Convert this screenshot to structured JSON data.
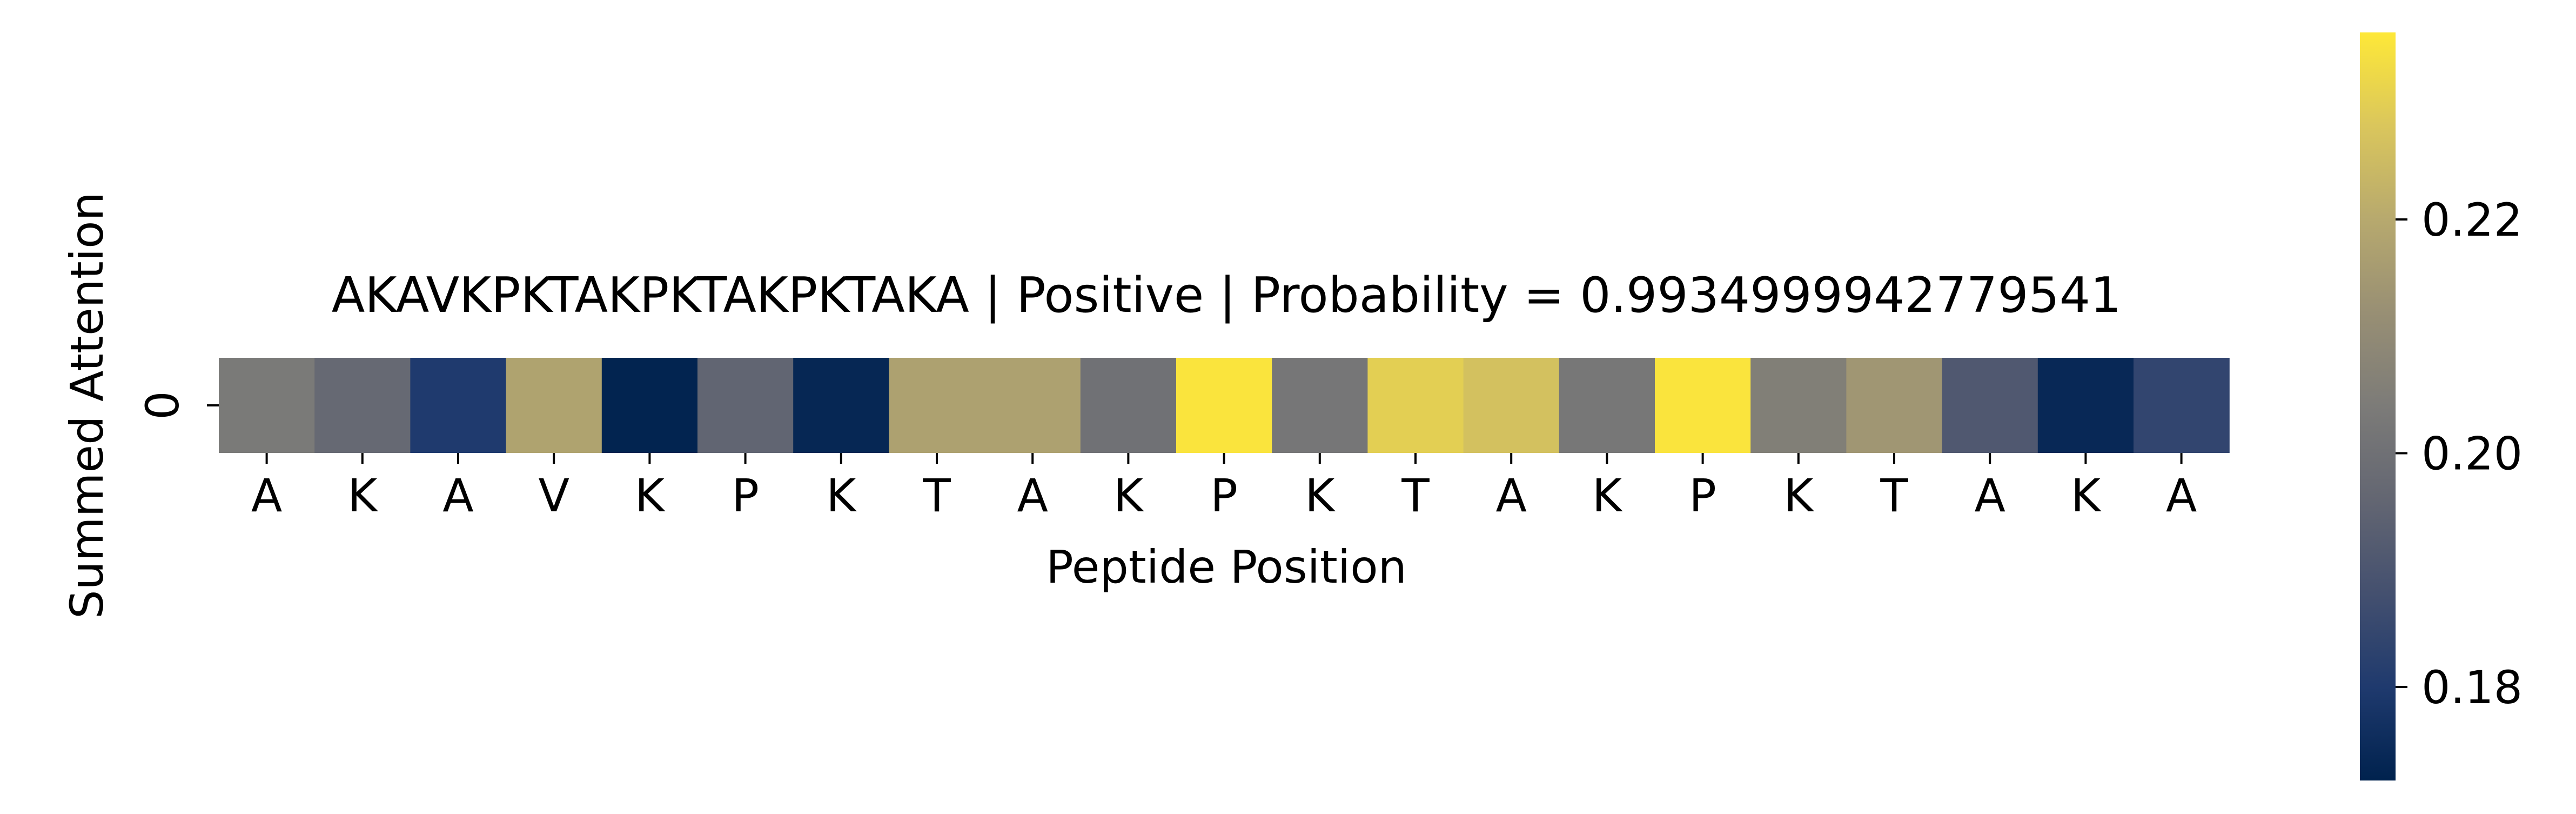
{
  "chart_data": {
    "type": "heatmap",
    "title": "AKAVKPKTAKPKTAKPKTAKA | Positive | Probability = 0.9934999942779541",
    "xlabel": "Peptide Position",
    "ylabel": "Summed Attention",
    "rows": [
      "0"
    ],
    "columns": [
      "A",
      "K",
      "A",
      "V",
      "K",
      "P",
      "K",
      "T",
      "A",
      "K",
      "P",
      "K",
      "T",
      "A",
      "K",
      "P",
      "K",
      "T",
      "A",
      "K",
      "A"
    ],
    "values": [
      [
        0.2035,
        0.197,
        0.18,
        0.218,
        0.1725,
        0.1955,
        0.1735,
        0.2175,
        0.2175,
        0.2,
        0.235,
        0.202,
        0.23,
        0.2265,
        0.2025,
        0.235,
        0.2055,
        0.214,
        0.191,
        0.174,
        0.184
      ]
    ],
    "colormap": "cividis",
    "colorbar": {
      "range": [
        0.172,
        0.236
      ],
      "ticks": [
        0.18,
        0.2,
        0.22
      ],
      "tick_labels": [
        "0.18",
        "0.20",
        "0.22"
      ]
    }
  }
}
